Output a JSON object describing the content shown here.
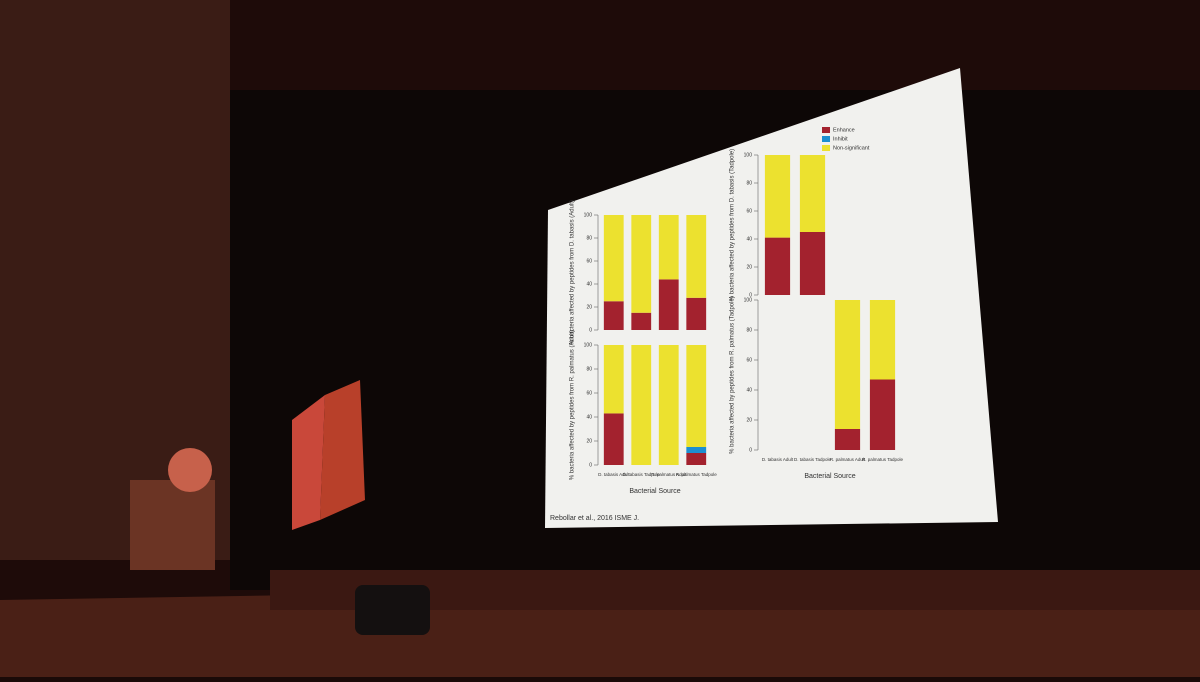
{
  "slide": {
    "citation": "Rebollar et al., 2016 ISME J."
  },
  "chart_data": [
    {
      "type": "stacked-bar",
      "y_label": "% bacteria affected by peptides from D. tabasis (Adult)",
      "categories": [
        null,
        null,
        null,
        null
      ],
      "series": [
        {
          "name": null,
          "color": "#a3222e",
          "values": [
            25,
            15,
            44,
            28
          ]
        },
        {
          "name": null,
          "color": "#1d8fd0",
          "values": [
            0,
            0,
            0,
            0
          ]
        },
        {
          "name": null,
          "color": "#ece12f",
          "values": [
            75,
            85,
            56,
            72
          ]
        }
      ],
      "ylim": [
        0,
        100
      ],
      "yticks": [
        0,
        20,
        40,
        60,
        80,
        100
      ]
    },
    {
      "type": "stacked-bar",
      "y_label": "% bacteria affected by peptides from D. tabasis (Tadpole)",
      "categories": [
        null,
        null,
        null,
        null
      ],
      "series": [
        {
          "name": "Enhance",
          "color": "#a3222e",
          "values": [
            41,
            45,
            null,
            null
          ]
        },
        {
          "name": "Inhibit",
          "color": "#1d8fd0",
          "values": [
            0,
            0,
            null,
            null
          ]
        },
        {
          "name": "Non-significant",
          "color": "#ece12f",
          "values": [
            59,
            55,
            null,
            null
          ]
        }
      ],
      "legend": "upper-left",
      "ylim": [
        0,
        100
      ],
      "yticks": [
        0,
        20,
        40,
        60,
        80,
        100
      ]
    },
    {
      "type": "stacked-bar",
      "y_label": "% bacteria affected by peptides from R. palmatus (Adult)",
      "x_label": "Bacterial Source",
      "categories": [
        "D. tabasis Adult",
        "D. tabasis Tadpole",
        "R. palmatus Adult",
        "R. palmatus Tadpole"
      ],
      "series": [
        {
          "name": null,
          "color": "#a3222e",
          "values": [
            43,
            0,
            0,
            10
          ]
        },
        {
          "name": null,
          "color": "#1d8fd0",
          "values": [
            0,
            0,
            0,
            5
          ]
        },
        {
          "name": null,
          "color": "#ece12f",
          "values": [
            57,
            100,
            100,
            85
          ]
        }
      ],
      "ylim": [
        0,
        100
      ],
      "yticks": [
        0,
        20,
        40,
        60,
        80,
        100
      ]
    },
    {
      "type": "stacked-bar",
      "y_label": "% bacteria affected by peptides from R. palmatus (Tadpole)",
      "x_label": "Bacterial Source",
      "categories": [
        "D. tabasis Adult",
        "D. tabasis Tadpole",
        "R. palmatus Adult",
        "R. palmatus Tadpole"
      ],
      "series": [
        {
          "name": null,
          "color": "#a3222e",
          "values": [
            null,
            null,
            14,
            47
          ]
        },
        {
          "name": null,
          "color": "#1d8fd0",
          "values": [
            null,
            null,
            0,
            0
          ]
        },
        {
          "name": null,
          "color": "#ece12f",
          "values": [
            null,
            null,
            86,
            53
          ]
        }
      ],
      "ylim": [
        0,
        100
      ],
      "yticks": [
        0,
        20,
        40,
        60,
        80,
        100
      ]
    }
  ]
}
